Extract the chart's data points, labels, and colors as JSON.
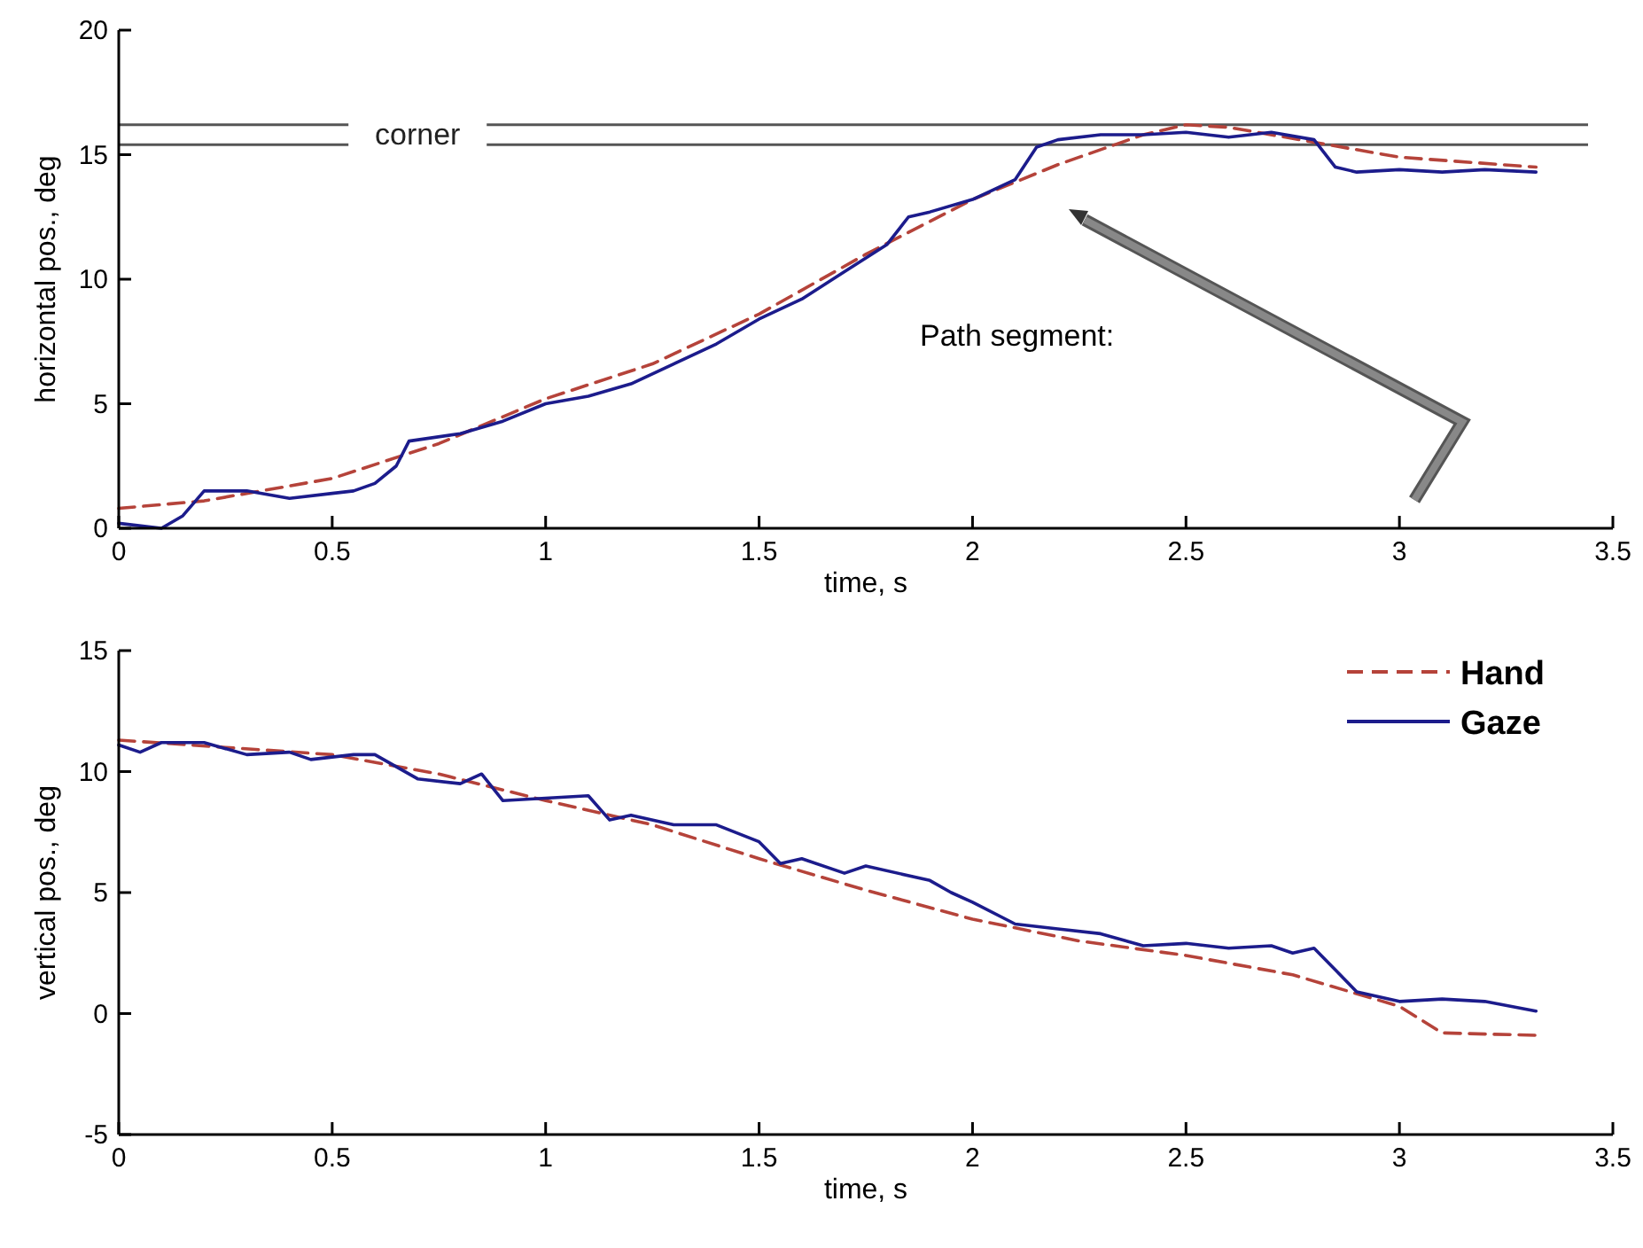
{
  "chart_data": [
    {
      "type": "line",
      "xlabel": "time, s",
      "ylabel": "horizontal pos., deg",
      "xlim": [
        0,
        3.5
      ],
      "ylim": [
        0,
        20
      ],
      "xticks": [
        0,
        0.5,
        1,
        1.5,
        2,
        2.5,
        3,
        3.5
      ],
      "yticks": [
        0,
        5,
        10,
        15,
        20
      ],
      "grid": false,
      "legend": false,
      "ref_lines": [
        {
          "axis": "y",
          "value": 16.2,
          "label": "corner",
          "color": "#555555"
        },
        {
          "axis": "y",
          "value": 15.4,
          "color": "#555555"
        }
      ],
      "annotations": [
        "Path segment:"
      ],
      "series": [
        {
          "color": "#b5433a",
          "line_style": "dashed",
          "x": [
            0,
            0.2,
            0.5,
            0.75,
            1.0,
            1.25,
            1.5,
            1.75,
            2.0,
            2.2,
            2.4,
            2.5,
            2.6,
            2.8,
            3.0,
            3.32
          ],
          "values": [
            0.8,
            1.1,
            2.0,
            3.4,
            5.2,
            6.6,
            8.6,
            11.0,
            13.2,
            14.6,
            15.8,
            16.2,
            16.1,
            15.5,
            14.9,
            14.5
          ]
        },
        {
          "color": "#1c1c8c",
          "line_style": "solid",
          "x": [
            0,
            0.1,
            0.15,
            0.18,
            0.2,
            0.3,
            0.4,
            0.5,
            0.55,
            0.6,
            0.65,
            0.68,
            0.8,
            0.9,
            1.0,
            1.1,
            1.2,
            1.3,
            1.4,
            1.5,
            1.6,
            1.7,
            1.8,
            1.85,
            1.9,
            2.0,
            2.1,
            2.15,
            2.2,
            2.3,
            2.4,
            2.5,
            2.6,
            2.7,
            2.8,
            2.85,
            2.9,
            3.0,
            3.1,
            3.2,
            3.32
          ],
          "values": [
            0.2,
            0.0,
            0.5,
            1.1,
            1.5,
            1.5,
            1.2,
            1.4,
            1.5,
            1.8,
            2.5,
            3.5,
            3.8,
            4.3,
            5.0,
            5.3,
            5.8,
            6.6,
            7.4,
            8.4,
            9.2,
            10.3,
            11.4,
            12.5,
            12.7,
            13.2,
            14.0,
            15.3,
            15.6,
            15.8,
            15.8,
            15.9,
            15.7,
            15.9,
            15.6,
            14.5,
            14.3,
            14.4,
            14.3,
            14.4,
            14.3
          ]
        }
      ]
    },
    {
      "type": "line",
      "xlabel": "time, s",
      "ylabel": "vertical pos., deg",
      "xlim": [
        0,
        3.5
      ],
      "ylim": [
        -5,
        15
      ],
      "xticks": [
        0,
        0.5,
        1,
        1.5,
        2,
        2.5,
        3,
        3.5
      ],
      "yticks": [
        -5,
        0,
        5,
        10,
        15
      ],
      "grid": false,
      "legend": "top right",
      "series": [
        {
          "name": "Hand",
          "color": "#b5433a",
          "line_style": "dashed",
          "x": [
            0,
            0.25,
            0.5,
            0.75,
            1.0,
            1.25,
            1.5,
            1.75,
            2.0,
            2.25,
            2.5,
            2.75,
            3.0,
            3.1,
            3.32
          ],
          "values": [
            11.3,
            11.0,
            10.7,
            9.9,
            8.8,
            7.8,
            6.4,
            5.1,
            3.9,
            3.0,
            2.4,
            1.6,
            0.3,
            -0.8,
            -0.9
          ]
        },
        {
          "name": "Gaze",
          "color": "#1c1c8c",
          "line_style": "solid",
          "x": [
            0,
            0.05,
            0.1,
            0.2,
            0.3,
            0.4,
            0.45,
            0.55,
            0.6,
            0.7,
            0.8,
            0.85,
            0.9,
            1.0,
            1.1,
            1.15,
            1.2,
            1.3,
            1.4,
            1.5,
            1.55,
            1.6,
            1.7,
            1.75,
            1.9,
            1.95,
            2.0,
            2.1,
            2.2,
            2.3,
            2.4,
            2.5,
            2.6,
            2.7,
            2.75,
            2.8,
            2.85,
            2.9,
            3.0,
            3.1,
            3.2,
            3.32
          ],
          "values": [
            11.1,
            10.8,
            11.2,
            11.2,
            10.7,
            10.8,
            10.5,
            10.7,
            10.7,
            9.7,
            9.5,
            9.9,
            8.8,
            8.9,
            9.0,
            8.0,
            8.2,
            7.8,
            7.8,
            7.1,
            6.2,
            6.4,
            5.8,
            6.1,
            5.5,
            5.0,
            4.6,
            3.7,
            3.5,
            3.3,
            2.8,
            2.9,
            2.7,
            2.8,
            2.5,
            2.7,
            1.8,
            0.9,
            0.5,
            0.6,
            0.5,
            0.1
          ]
        }
      ]
    }
  ]
}
